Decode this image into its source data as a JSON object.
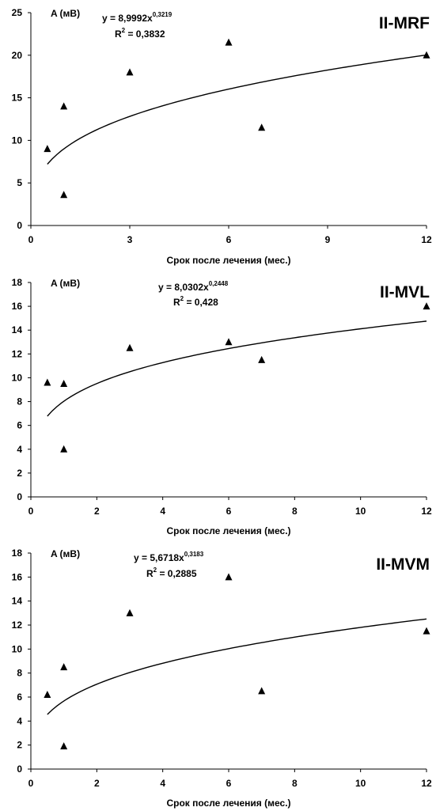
{
  "chart_data": [
    {
      "type": "scatter",
      "title": "II-MRF",
      "ylabel": "A (мВ)",
      "xlabel": "Срок после лечения (мес.)",
      "equation_main": "y = 8,9992x",
      "equation_exp": "0,3219",
      "r2_main": "R",
      "r2_exp": "2",
      "r2_value": " = 0,3832",
      "xlim": [
        0,
        12
      ],
      "ylim": [
        0,
        25
      ],
      "xticks": [
        0,
        3,
        6,
        9,
        12
      ],
      "yticks": [
        0,
        5,
        10,
        15,
        20,
        25
      ],
      "points": [
        {
          "x": 0.5,
          "y": 9.0
        },
        {
          "x": 1,
          "y": 14.0
        },
        {
          "x": 1,
          "y": 3.6
        },
        {
          "x": 3,
          "y": 18.0
        },
        {
          "x": 6,
          "y": 21.5
        },
        {
          "x": 7,
          "y": 11.5
        },
        {
          "x": 12,
          "y": 20.0
        }
      ],
      "trend": {
        "type": "power",
        "a": 8.9992,
        "b": 0.3219,
        "x_from": 0.5,
        "x_to": 12
      },
      "marker": "triangle",
      "color": "#000000"
    },
    {
      "type": "scatter",
      "title": "II-MVL",
      "ylabel": "A (мВ)",
      "xlabel": "Срок после лечения (мес.)",
      "equation_main": "y = 8,0302x",
      "equation_exp": "0,2448",
      "r2_main": "R",
      "r2_exp": "2",
      "r2_value": " = 0,428",
      "xlim": [
        0,
        12
      ],
      "ylim": [
        0,
        18
      ],
      "xticks": [
        0,
        2,
        4,
        6,
        8,
        10,
        12
      ],
      "yticks": [
        0,
        2,
        4,
        6,
        8,
        10,
        12,
        14,
        16,
        18
      ],
      "points": [
        {
          "x": 0.5,
          "y": 9.6
        },
        {
          "x": 1,
          "y": 9.5
        },
        {
          "x": 1,
          "y": 4.0
        },
        {
          "x": 3,
          "y": 12.5
        },
        {
          "x": 6,
          "y": 13.0
        },
        {
          "x": 7,
          "y": 11.5
        },
        {
          "x": 12,
          "y": 16.0
        }
      ],
      "trend": {
        "type": "power",
        "a": 8.0302,
        "b": 0.2448,
        "x_from": 0.5,
        "x_to": 12
      },
      "marker": "triangle",
      "color": "#000000"
    },
    {
      "type": "scatter",
      "title": "II-MVM",
      "ylabel": "A (мВ)",
      "xlabel": "Срок после лечения (мес.)",
      "equation_main": "y = 5,6718x",
      "equation_exp": "0,3183",
      "r2_main": "R",
      "r2_exp": "2",
      "r2_value": " = 0,2885",
      "xlim": [
        0,
        12
      ],
      "ylim": [
        0,
        18
      ],
      "xticks": [
        0,
        2,
        4,
        6,
        8,
        10,
        12
      ],
      "yticks": [
        0,
        2,
        4,
        6,
        8,
        10,
        12,
        14,
        16,
        18
      ],
      "points": [
        {
          "x": 0.5,
          "y": 6.2
        },
        {
          "x": 1,
          "y": 8.5
        },
        {
          "x": 1,
          "y": 1.9
        },
        {
          "x": 3,
          "y": 13.0
        },
        {
          "x": 6,
          "y": 16.0
        },
        {
          "x": 7,
          "y": 6.5
        },
        {
          "x": 12,
          "y": 11.5
        }
      ],
      "trend": {
        "type": "power",
        "a": 5.6718,
        "b": 0.3183,
        "x_from": 0.5,
        "x_to": 12
      },
      "marker": "triangle",
      "color": "#000000"
    }
  ]
}
